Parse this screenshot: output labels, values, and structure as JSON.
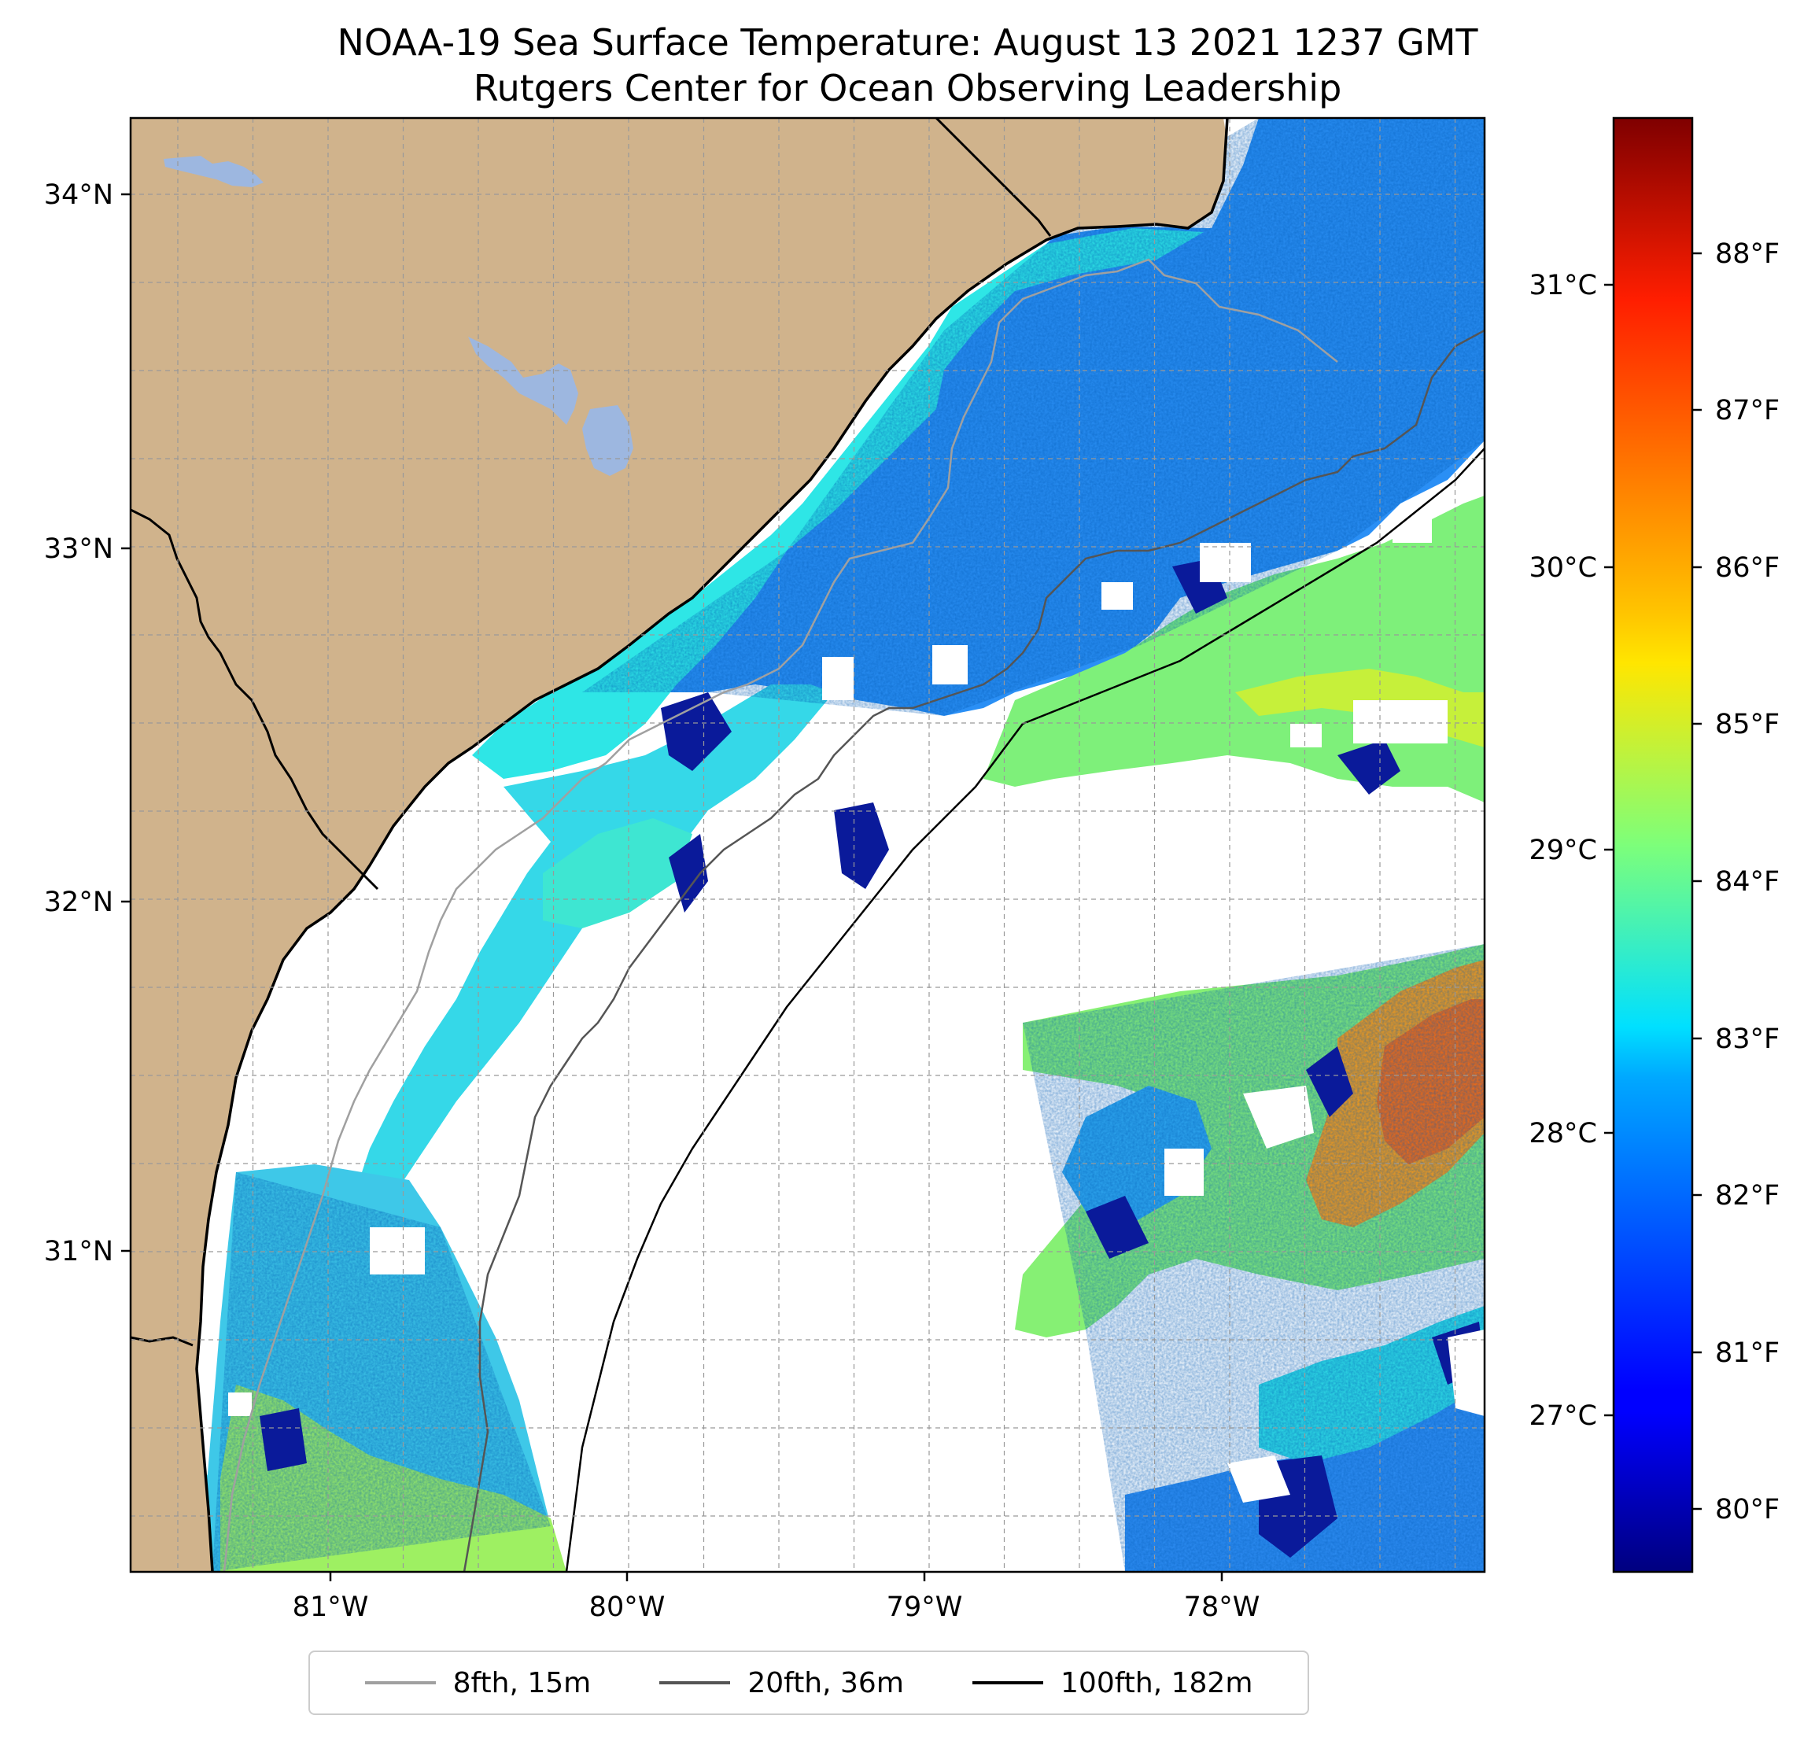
{
  "figure": {
    "title_line1": "NOAA-19 Sea Surface Temperature: August 13 2021 1237 GMT",
    "title_line2": "Rutgers Center for Ocean Observing Leadership"
  },
  "map": {
    "land_color": "#d0b38c",
    "lake_color": "#9db7e0",
    "no_data_color": "#ffffff",
    "gridlines": true,
    "lat_ticks": [
      "34°N",
      "33°N",
      "32°N",
      "31°N"
    ],
    "lon_ticks": [
      "81°W",
      "80°W",
      "79°W",
      "78°W"
    ]
  },
  "colorbar": {
    "colormap": "jet",
    "celsius_ticks": [
      "31°C",
      "30°C",
      "29°C",
      "28°C",
      "27°C"
    ],
    "fahrenheit_ticks": [
      "88°F",
      "87°F",
      "86°F",
      "85°F",
      "84°F",
      "83°F",
      "82°F",
      "81°F",
      "80°F"
    ]
  },
  "legend": {
    "placement": "bottom-center",
    "items": [
      {
        "label": "8fth, 15m",
        "color": "#a0a0a0"
      },
      {
        "label": "20fth, 36m",
        "color": "#555555"
      },
      {
        "label": "100fth, 182m",
        "color": "#000000"
      }
    ]
  }
}
